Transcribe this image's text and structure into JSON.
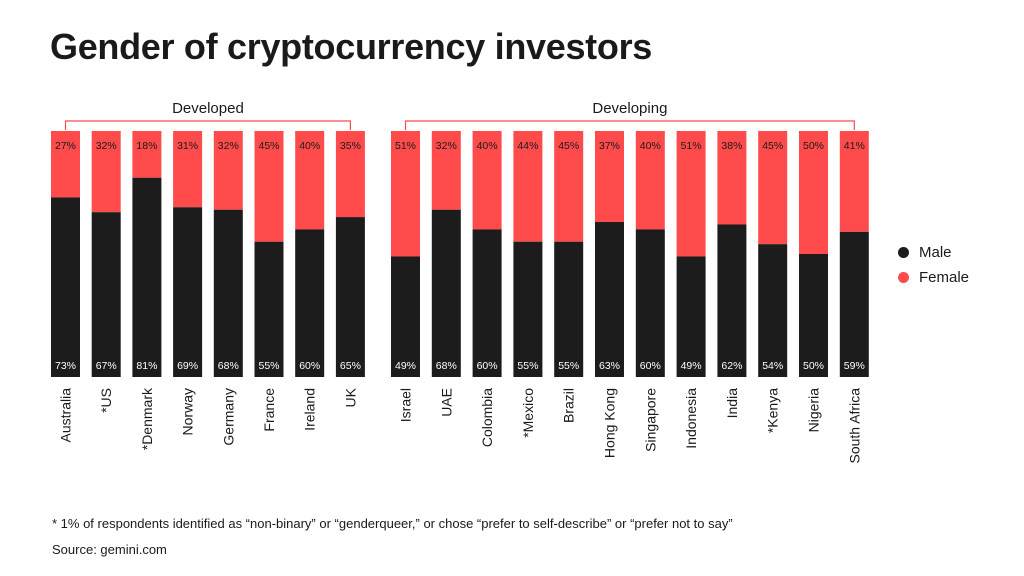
{
  "title": "Gender of cryptocurrency investors",
  "footnote": "* 1% of respondents identified as “non-binary” or “genderqueer,” or chose “prefer to self-describe” or “prefer not to say”",
  "source": "Source: gemini.com",
  "colors": {
    "male": "#1c1c1c",
    "female": "#ff4b4b",
    "bracket": "#ff4b4b"
  },
  "legend": [
    {
      "name": "Male",
      "color": "#1c1c1c"
    },
    {
      "name": "Female",
      "color": "#ff4b4b"
    }
  ],
  "chart_data": {
    "type": "bar",
    "stacked": true,
    "percent_stacked": true,
    "groups": [
      {
        "label": "Developed",
        "categories": [
          "Australia",
          "*US",
          "*Denmark",
          "Norway",
          "Germany",
          "France",
          "Ireland",
          "UK"
        ]
      },
      {
        "label": "Developing",
        "categories": [
          "Israel",
          "UAE",
          "Colombia",
          "*Mexico",
          "Brazil",
          "Hong Kong",
          "Singapore",
          "Indonesia",
          "India",
          "*Kenya",
          "Nigeria",
          "South Africa"
        ]
      }
    ],
    "categories": [
      "Australia",
      "*US",
      "*Denmark",
      "Norway",
      "Germany",
      "France",
      "Ireland",
      "UK",
      "Israel",
      "UAE",
      "Colombia",
      "*Mexico",
      "Brazil",
      "Hong Kong",
      "Singapore",
      "Indonesia",
      "India",
      "*Kenya",
      "Nigeria",
      "South Africa"
    ],
    "series": [
      {
        "name": "Male",
        "values": [
          73,
          67,
          81,
          69,
          68,
          55,
          60,
          65,
          49,
          68,
          60,
          55,
          55,
          63,
          60,
          49,
          62,
          54,
          50,
          59
        ]
      },
      {
        "name": "Female",
        "values": [
          27,
          32,
          18,
          31,
          32,
          45,
          40,
          35,
          51,
          32,
          40,
          44,
          45,
          37,
          40,
          51,
          38,
          45,
          50,
          41
        ]
      }
    ],
    "male_labels": [
      "73%",
      "67%",
      "81%",
      "69%",
      "68%",
      "55%",
      "60%",
      "65%",
      "49%",
      "68%",
      "60%",
      "55%",
      "55%",
      "63%",
      "60%",
      "49%",
      "62%",
      "54%",
      "50%",
      "59%"
    ],
    "female_labels": [
      "27%",
      "32%",
      "18%",
      "31%",
      "32%",
      "45%",
      "40%",
      "35%",
      "51%",
      "32%",
      "40%",
      "44%",
      "45%",
      "37%",
      "40%",
      "51%",
      "38%",
      "45%",
      "50%",
      "41%"
    ],
    "ylim": [
      0,
      100
    ],
    "legend_position": "right",
    "grid": false
  }
}
